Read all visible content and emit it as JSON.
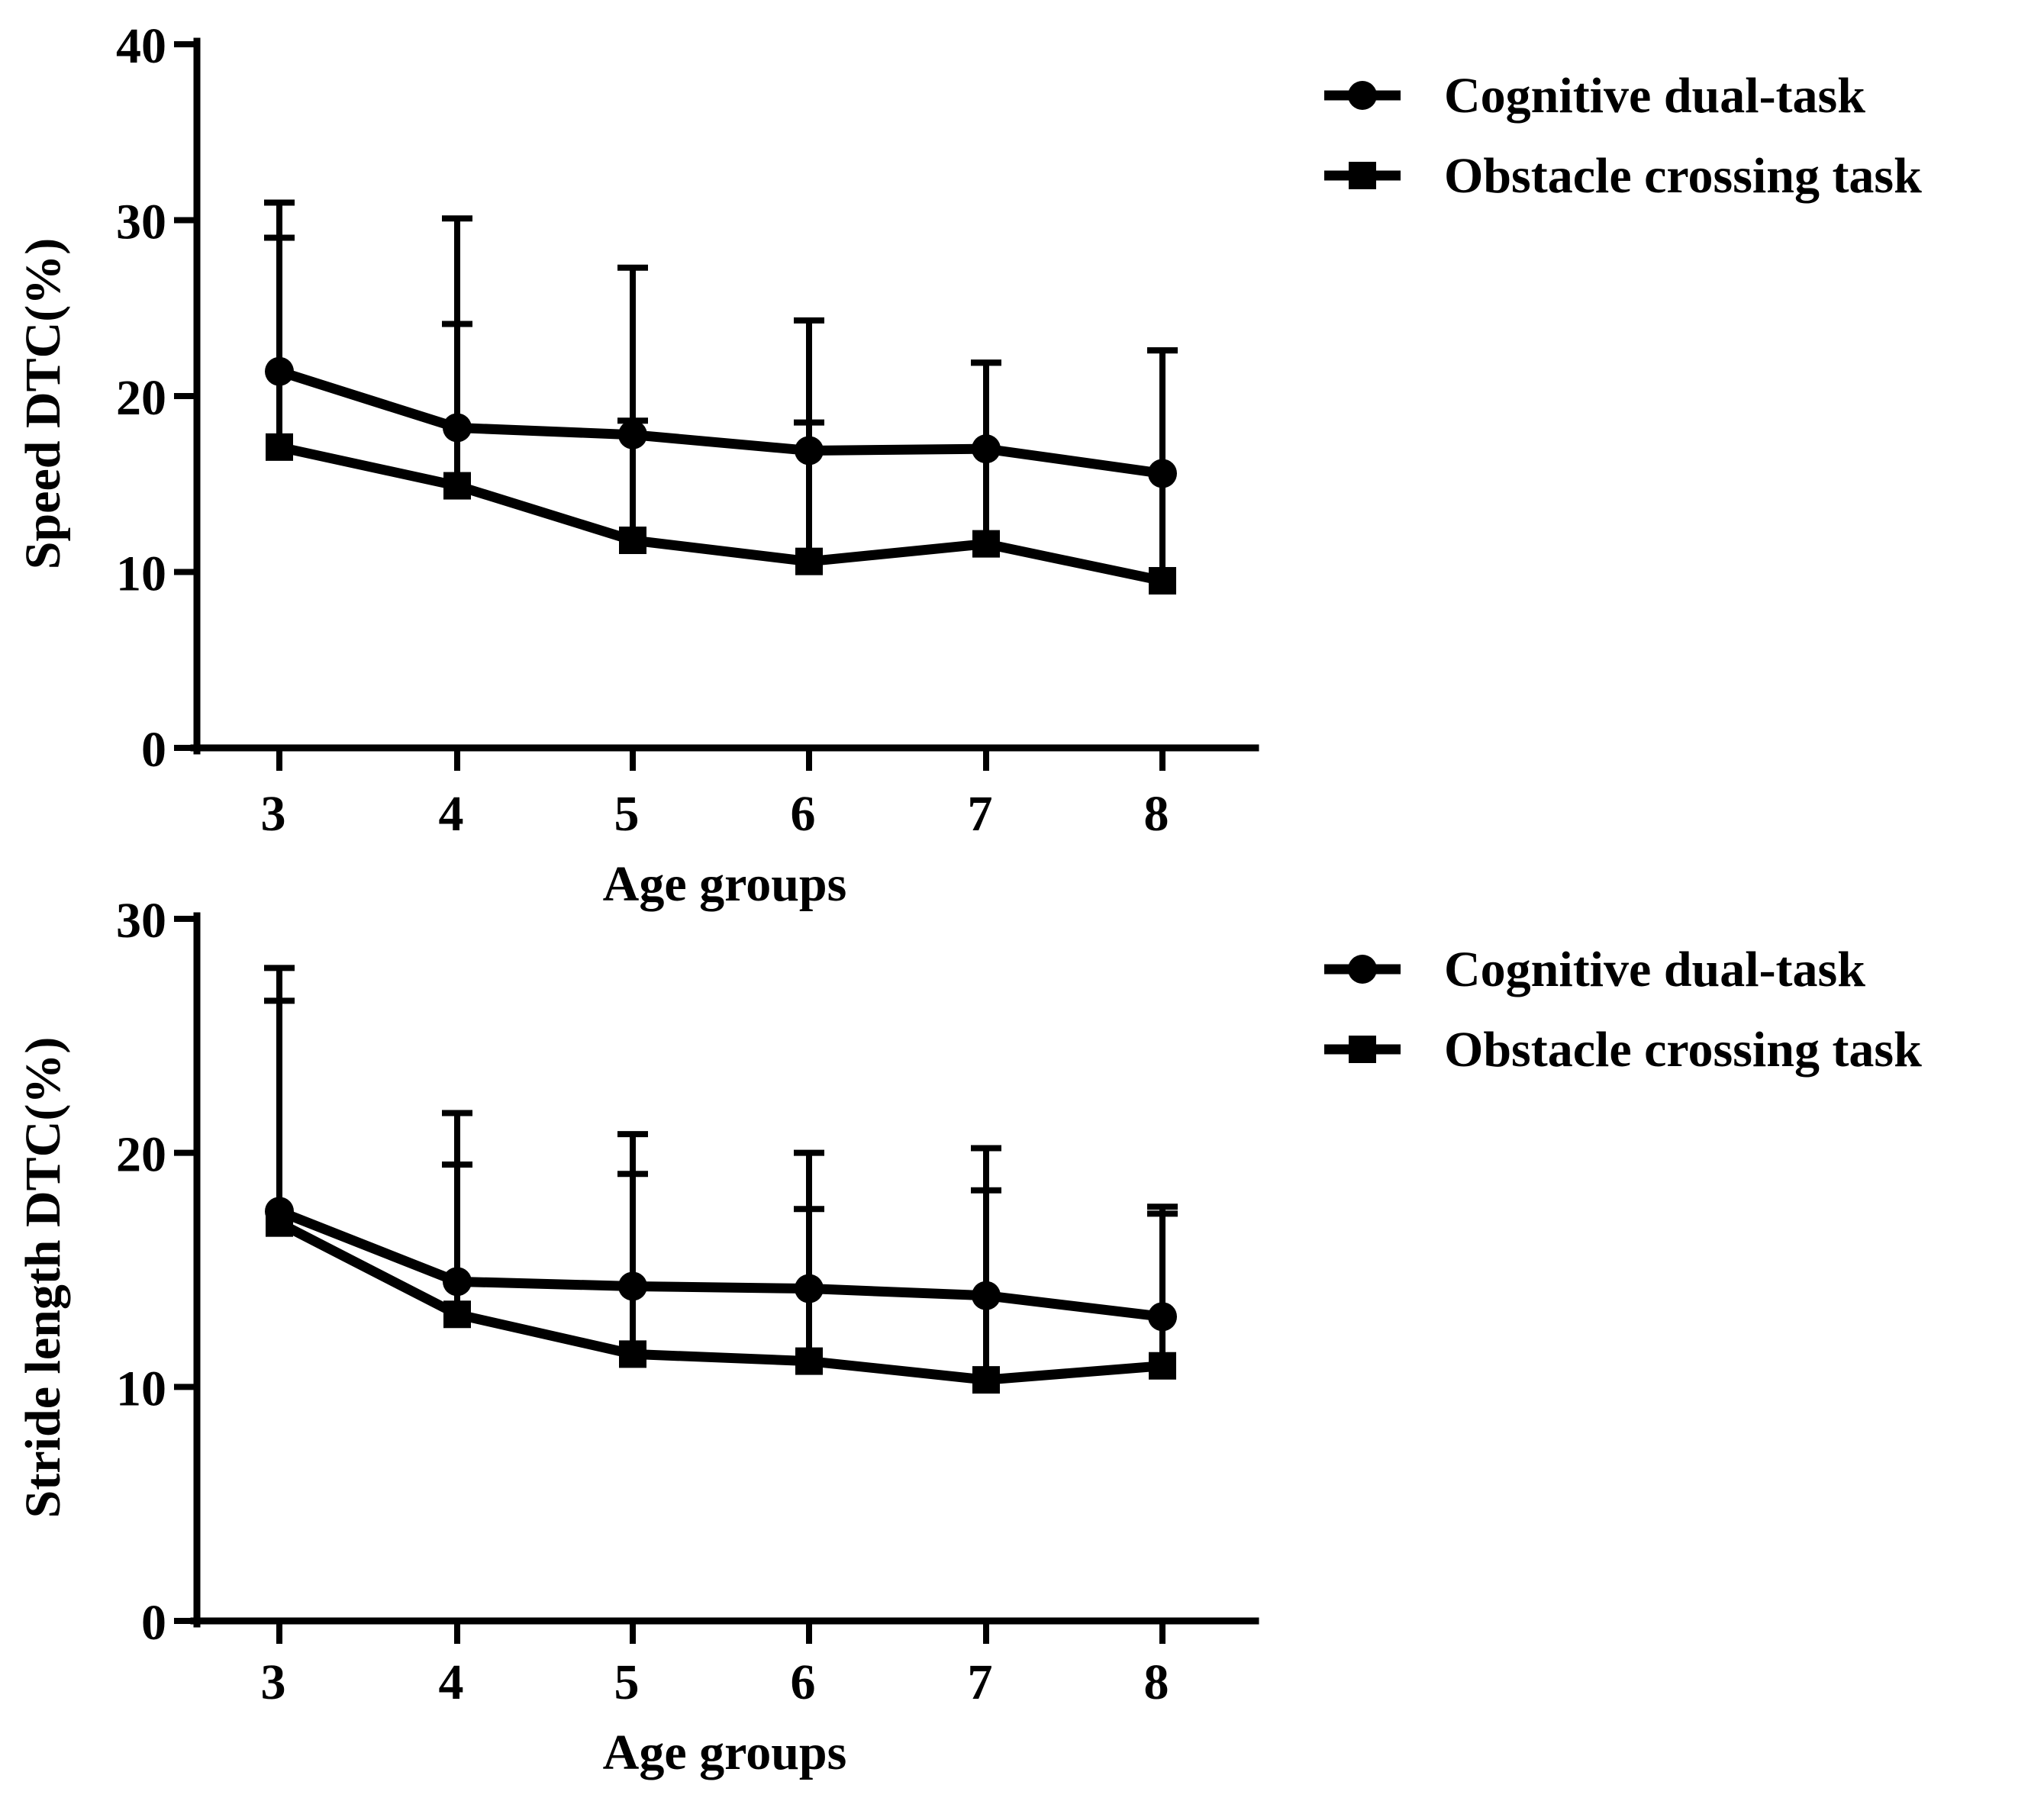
{
  "chart_data": [
    {
      "type": "line",
      "x": [
        3,
        4,
        5,
        6,
        7,
        8
      ],
      "xlabel": "Age groups",
      "ylabel": "Speed DTC(%)",
      "ylim": [
        0,
        40
      ],
      "yticks": [
        0,
        10,
        20,
        30,
        40
      ],
      "grid": false,
      "legend_position": "top-right",
      "series": [
        {
          "name": "Cognitive dual-task",
          "marker": "circle",
          "values": [
            21.4,
            18.2,
            17.8,
            16.9,
            17.0,
            15.6
          ],
          "error_upper": [
            29.0,
            24.1,
            18.6,
            18.5,
            21.9,
            22.6
          ]
        },
        {
          "name": "Obstacle crossing task",
          "marker": "square",
          "values": [
            17.1,
            14.9,
            11.8,
            10.6,
            11.6,
            9.5
          ],
          "error_upper": [
            31.0,
            30.1,
            27.3,
            24.3,
            21.9,
            22.6
          ]
        }
      ]
    },
    {
      "type": "line",
      "x": [
        3,
        4,
        5,
        6,
        7,
        8
      ],
      "xlabel": "Age groups",
      "ylabel": "Stride length DTC(%)",
      "ylim": [
        0,
        30
      ],
      "yticks": [
        0,
        10,
        20,
        30
      ],
      "grid": false,
      "legend_position": "top-right",
      "series": [
        {
          "name": "Cognitive dual-task",
          "marker": "circle",
          "values": [
            17.5,
            14.5,
            14.3,
            14.2,
            13.9,
            13.0
          ],
          "error_upper": [
            26.5,
            19.5,
            19.1,
            17.6,
            18.4,
            17.7
          ]
        },
        {
          "name": "Obstacle crossing task",
          "marker": "square",
          "values": [
            17.0,
            13.1,
            11.4,
            11.1,
            10.3,
            10.9
          ],
          "error_upper": [
            27.9,
            21.7,
            20.8,
            20.0,
            20.2,
            17.4
          ]
        }
      ]
    }
  ],
  "colors": {
    "ink": "#000000",
    "background": "#ffffff"
  }
}
